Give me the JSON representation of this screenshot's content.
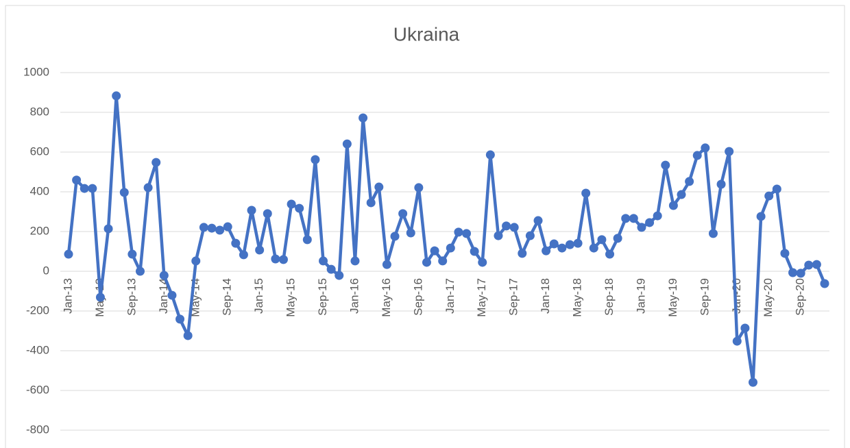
{
  "chart_data": {
    "type": "line",
    "title": "Ukraina",
    "categories": [
      "Jan-13",
      null,
      null,
      null,
      "May-13",
      null,
      null,
      null,
      "Sep-13",
      null,
      null,
      null,
      "Jan-14",
      null,
      null,
      null,
      "May-14",
      null,
      null,
      null,
      "Sep-14",
      null,
      null,
      null,
      "Jan-15",
      null,
      null,
      null,
      "May-15",
      null,
      null,
      null,
      "Sep-15",
      null,
      null,
      null,
      "Jan-16",
      null,
      null,
      null,
      "May-16",
      null,
      null,
      null,
      "Sep-16",
      null,
      null,
      null,
      "Jan-17",
      null,
      null,
      null,
      "May-17",
      null,
      null,
      null,
      "Sep-17",
      null,
      null,
      null,
      "Jan-18",
      null,
      null,
      null,
      "May-18",
      null,
      null,
      null,
      "Sep-18",
      null,
      null,
      null,
      "Jan-19",
      null,
      null,
      null,
      "May-19",
      null,
      null,
      null,
      "Sep-19",
      null,
      null,
      null,
      "Jan-20",
      null,
      null,
      null,
      "May-20",
      null,
      null,
      null,
      "Sep-20",
      null,
      null,
      null
    ],
    "values": [
      86,
      459,
      417,
      417,
      -131,
      214,
      883,
      397,
      86,
      0,
      421,
      548,
      -21,
      -121,
      -241,
      -324,
      52,
      221,
      217,
      207,
      224,
      141,
      83,
      307,
      107,
      290,
      62,
      59,
      338,
      317,
      159,
      562,
      52,
      10,
      -21,
      641,
      52,
      772,
      345,
      424,
      34,
      176,
      290,
      193,
      421,
      45,
      103,
      52,
      117,
      197,
      190,
      100,
      45,
      586,
      179,
      228,
      221,
      90,
      179,
      255,
      103,
      138,
      117,
      134,
      141,
      393,
      117,
      159,
      86,
      166,
      266,
      266,
      221,
      245,
      279,
      534,
      331,
      386,
      452,
      583,
      621,
      190,
      438,
      603,
      -352,
      -286,
      -559,
      276,
      379,
      414,
      90,
      -7,
      -10,
      31,
      34,
      -62
    ],
    "color": "#4472c4",
    "ylim": [
      -800,
      1000
    ],
    "yticks": [
      -800,
      -600,
      -400,
      -200,
      0,
      200,
      400,
      600,
      800,
      1000
    ],
    "grid": true
  }
}
